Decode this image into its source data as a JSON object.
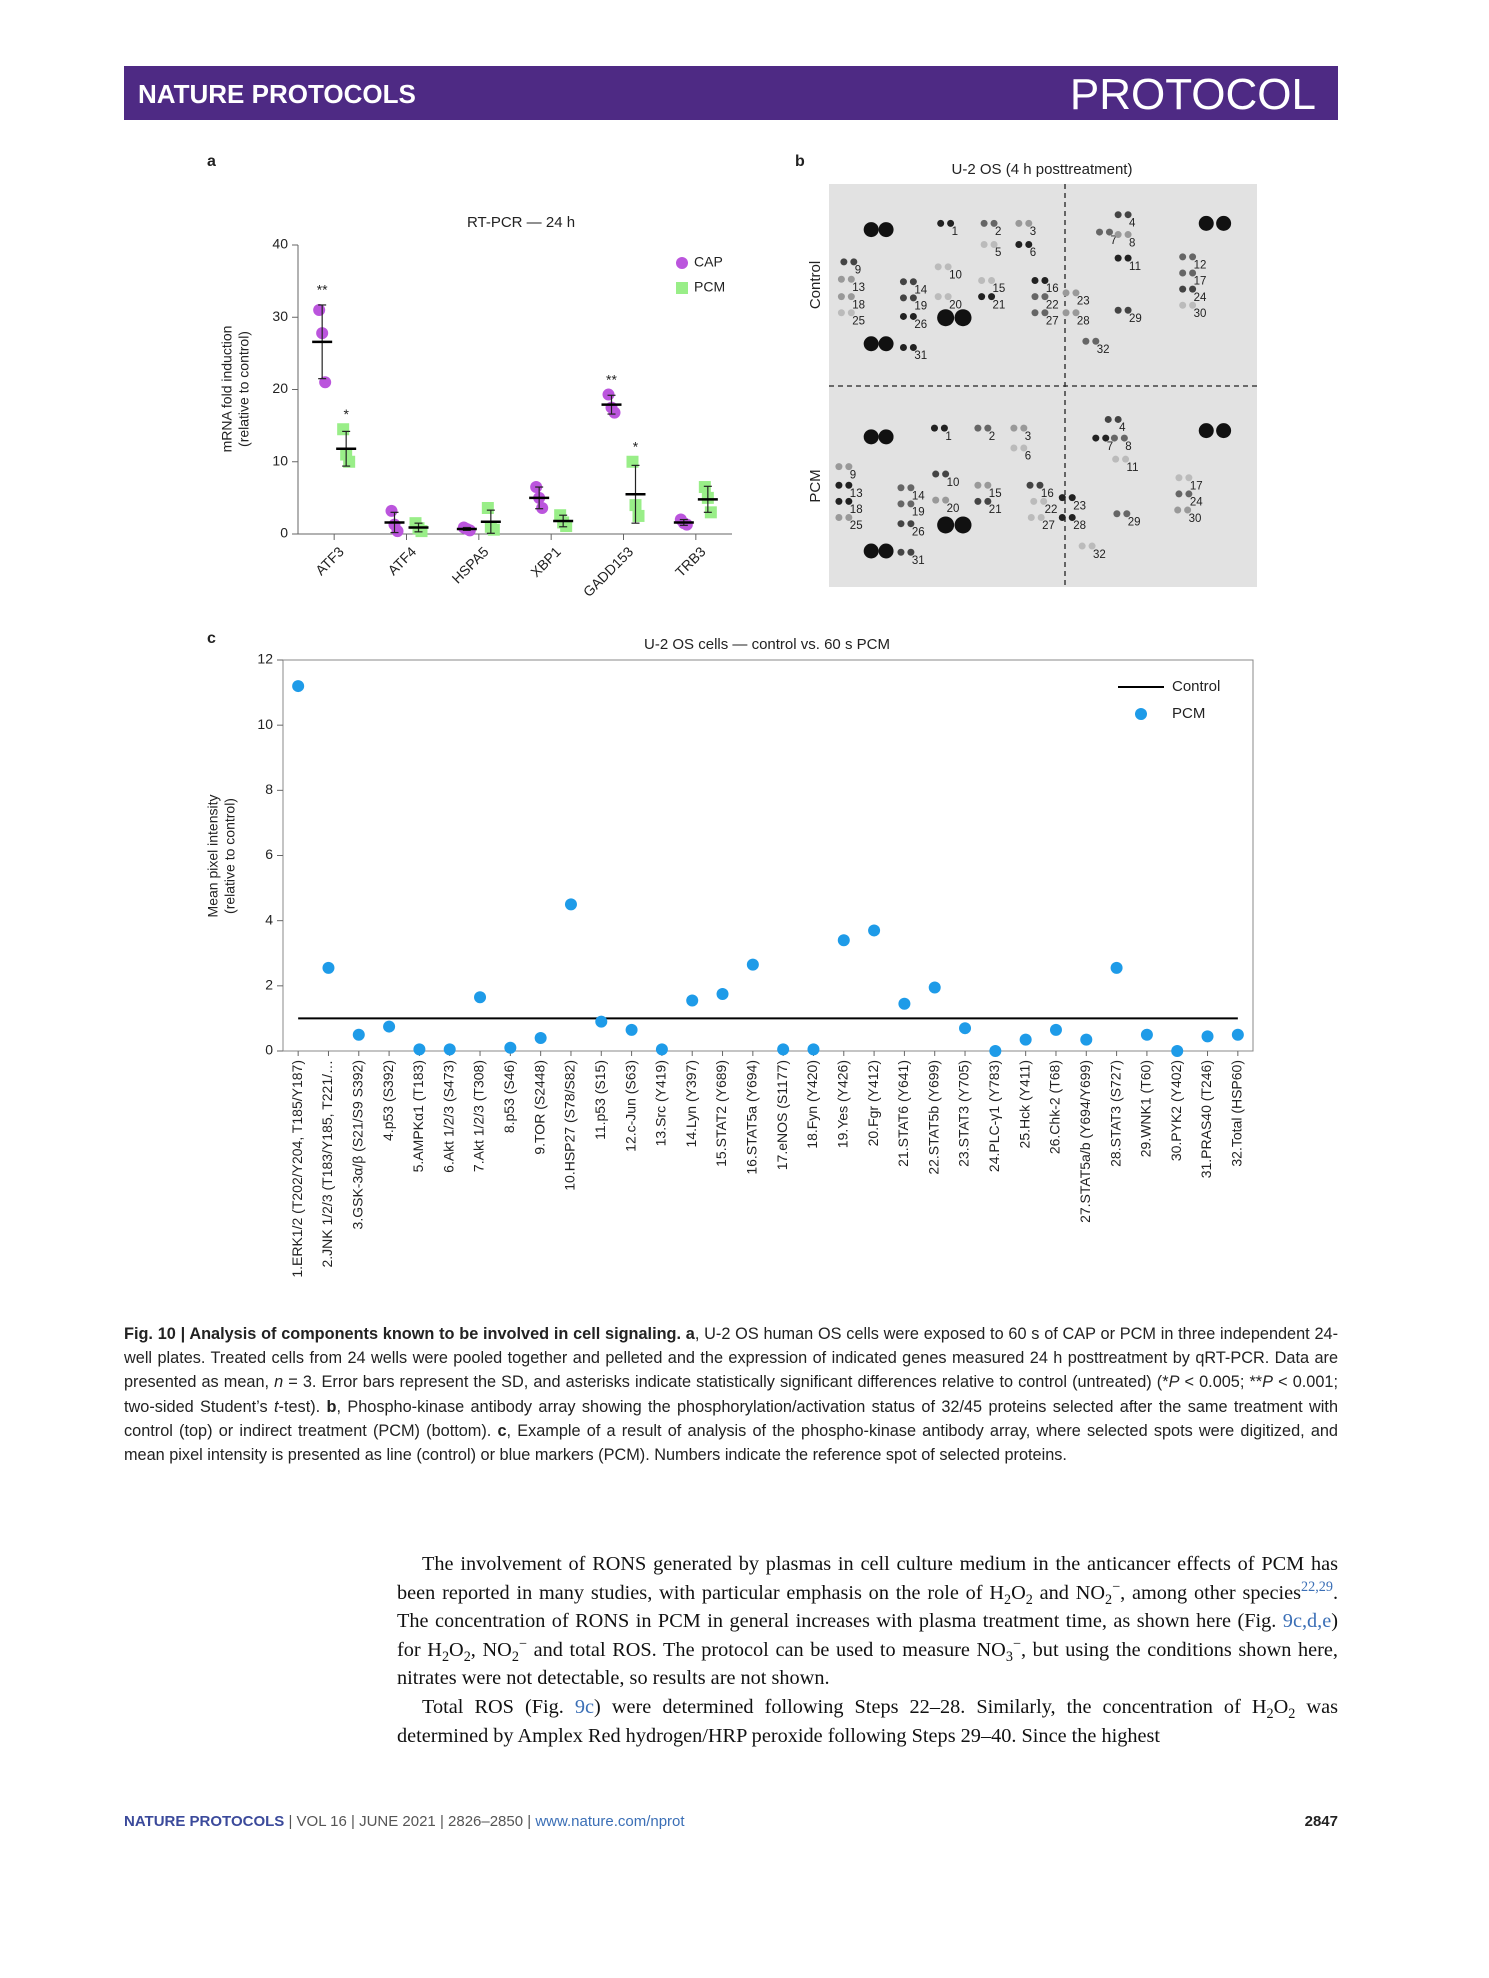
{
  "header": {
    "journal": "NATURE PROTOCOLS",
    "section": "PROTOCOL"
  },
  "panel_labels": [
    "a",
    "b",
    "c"
  ],
  "chart_data": [
    {
      "type": "dot",
      "title": "RT-PCR — 24 h",
      "ylabel": [
        "mRNA fold induction",
        "(relative to control)"
      ],
      "categories": [
        "ATF3",
        "ATF4",
        "HSPA5",
        "XBP1",
        "GADD153",
        "TRB3"
      ],
      "ylim": [
        0,
        40
      ],
      "yticks": [
        0,
        10,
        20,
        30,
        40
      ],
      "legend": "top-right",
      "series": [
        {
          "name": "CAP",
          "color": "#bb55dd",
          "marker": "circle",
          "values": [
            [
              31,
              27.8,
              21
            ],
            [
              3.2,
              1.3,
              0.4
            ],
            [
              0.9,
              0.7,
              0.5
            ],
            [
              6.5,
              5,
              3.6
            ],
            [
              19.3,
              17.5,
              16.8
            ],
            [
              2,
              1.5,
              1.3
            ]
          ],
          "mean": [
            26.6,
            1.6,
            0.7,
            5,
            17.9,
            1.6
          ],
          "sd": [
            5.1,
            1.4,
            0.2,
            1.5,
            1.3,
            0.4
          ],
          "annotations": [
            "**",
            null,
            null,
            null,
            "**",
            null
          ]
        },
        {
          "name": "PCM",
          "color": "#99ee88",
          "marker": "square",
          "values": [
            [
              14.5,
              11,
              10
            ],
            [
              1.5,
              0.8,
              0.4
            ],
            [
              3.6,
              1,
              0.6
            ],
            [
              2.6,
              1.6,
              1.1
            ],
            [
              10,
              4,
              2.5
            ],
            [
              6.5,
              5,
              3
            ]
          ],
          "mean": [
            11.8,
            0.9,
            1.7,
            1.8,
            5.5,
            4.8
          ],
          "sd": [
            2.4,
            0.6,
            1.6,
            0.8,
            4.0,
            1.8
          ],
          "annotations": [
            "*",
            null,
            null,
            null,
            "*",
            null
          ]
        }
      ]
    },
    {
      "type": "scatter",
      "title": "U-2 OS cells — control vs. 60 s PCM",
      "ylabel": [
        "Mean pixel intensity",
        "(relative to control)"
      ],
      "categories": [
        "1.ERK1/2 (T202/Y204, T185/Y187)",
        "2.JNK 1/2/3 (T183/Y185, T221/…",
        "3.GSK-3α/β (S21/S9 S392)",
        "4.p53 (S392)",
        "5.AMPKα1 (T183)",
        "6.Akt 1/2/3 (S473)",
        "7.Akt 1/2/3 (T308)",
        "8.p53 (S46)",
        "9.TOR (S2448)",
        "10.HSP27 (S78/S82)",
        "11.p53 (S15)",
        "12.c-Jun (S63)",
        "13.Src (Y419)",
        "14.Lyn (Y397)",
        "15.STAT2 (Y689)",
        "16.STAT5a (Y694)",
        "17.eNOS (S1177)",
        "18.Fyn (Y420)",
        "19.Yes (Y426)",
        "20.Fgr (Y412)",
        "21.STAT6 (Y641)",
        "22.STAT5b (Y699)",
        "23.STAT3 (Y705)",
        "24.PLC-γ1 (Y783)",
        "25.Hck (Y411)",
        "26.Chk-2 (T68)",
        "27.STAT5a/b (Y694/Y699)",
        "28.STAT3 (S727)",
        "29.WNK1 (T60)",
        "30.PYK2 (Y402)",
        "31.PRAS40 (T246)",
        "32.Total (HSP60)"
      ],
      "ylim": [
        0,
        12
      ],
      "yticks": [
        0,
        2,
        4,
        6,
        8,
        10,
        12
      ],
      "legend": "top-right",
      "series": [
        {
          "name": "Control",
          "color": "#000000",
          "style": "line",
          "values": [
            1,
            1,
            1,
            1,
            1,
            1,
            1,
            1,
            1,
            1,
            1,
            1,
            1,
            1,
            1,
            1,
            1,
            1,
            1,
            1,
            1,
            1,
            1,
            1,
            1,
            1,
            1,
            1,
            1,
            1,
            1,
            1
          ]
        },
        {
          "name": "PCM",
          "color": "#1e9be8",
          "style": "marker",
          "values": [
            11.2,
            2.55,
            0.5,
            0.75,
            0.05,
            0.05,
            1.65,
            0.1,
            0.4,
            4.5,
            0.9,
            0.65,
            0.05,
            1.55,
            1.75,
            2.65,
            0.05,
            0.05,
            3.4,
            3.7,
            1.45,
            1.95,
            0.7,
            0,
            0.35,
            0.65,
            0.35,
            2.55,
            0.5,
            0,
            0.45,
            0.5
          ]
        }
      ]
    }
  ],
  "blot": {
    "title": "U-2 OS (4 h posttreatment)",
    "rows": [
      "Control",
      "PCM"
    ],
    "control_spots": [
      "1",
      "2",
      "3",
      "4",
      "5",
      "6",
      "7",
      "8",
      "9",
      "10",
      "11",
      "12",
      "13",
      "14",
      "15",
      "16",
      "17",
      "18",
      "19",
      "20",
      "21",
      "22",
      "23",
      "24",
      "25",
      "26",
      "27",
      "28",
      "29",
      "30",
      "31",
      "32"
    ],
    "pcm_spots": [
      "1",
      "2",
      "3",
      "4",
      "6",
      "7",
      "8",
      "9",
      "10",
      "11",
      "13",
      "14",
      "15",
      "16",
      "17",
      "18",
      "19",
      "20",
      "21",
      "22",
      "23",
      "24",
      "25",
      "26",
      "27",
      "28",
      "29",
      "30",
      "31",
      "32"
    ]
  },
  "caption": [
    "Fig. 10 | Analysis of components known to be involved in cell signaling. ",
    "a",
    ", U-2 OS human OS cells were exposed to 60 s of CAP or PCM in three independent 24-well plates. Treated cells from 24 wells were pooled together and pelleted and the expression of indicated genes measured 24 h posttreatment by qRT-PCR. Data are presented as mean, ",
    "n",
    " = 3. Error bars represent the SD, and asterisks indicate statistically significant differences relative to control (untreated) (*",
    "P",
    " < 0.005; **",
    "P",
    " < 0.001; two-sided Student’s ",
    "t",
    "-test). ",
    "b",
    ", Phospho-kinase antibody array showing the phosphorylation/activation status of 32/45 proteins selected after the same treatment with control (top) or indirect treatment (PCM) (bottom). ",
    "c",
    ", Example of a result of analysis of the phospho-kinase antibody array, where selected spots were digitized, and mean pixel intensity is presented as line (control) or blue markers (PCM). Numbers indicate the reference spot of selected proteins."
  ],
  "body": [
    [
      "The involvement of RONS generated by plasmas in cell culture medium in the anticancer effects of PCM has been reported in many studies, with particular emphasis on the role of H",
      "2",
      "O",
      "2",
      " and NO",
      "2",
      "−",
      ", among other species",
      "22,29",
      ". The concentration of RONS in PCM in general increases with plasma treatment time, as shown here (Fig. ",
      "9c,d,e",
      ") for H",
      "2",
      "O",
      "2",
      ", NO",
      "2",
      "−",
      " and total ROS. The protocol can be used to measure NO",
      "3",
      "−",
      ", but using the conditions shown here, nitrates were not detectable, so results are not shown."
    ],
    [
      "Total ROS (Fig. ",
      "9c",
      ") were determined following Steps 22–28. Similarly, the concentration of H",
      "2",
      "O",
      "2",
      " was determined by Amplex Red hydrogen/HRP peroxide following Steps 29–40. Since the highest"
    ]
  ],
  "footer": {
    "journal": "NATURE PROTOCOLS",
    "issue": " | VOL 16 | JUNE 2021 | 2826–2850 | ",
    "url": "www.nature.com/nprot",
    "page": "2847"
  }
}
